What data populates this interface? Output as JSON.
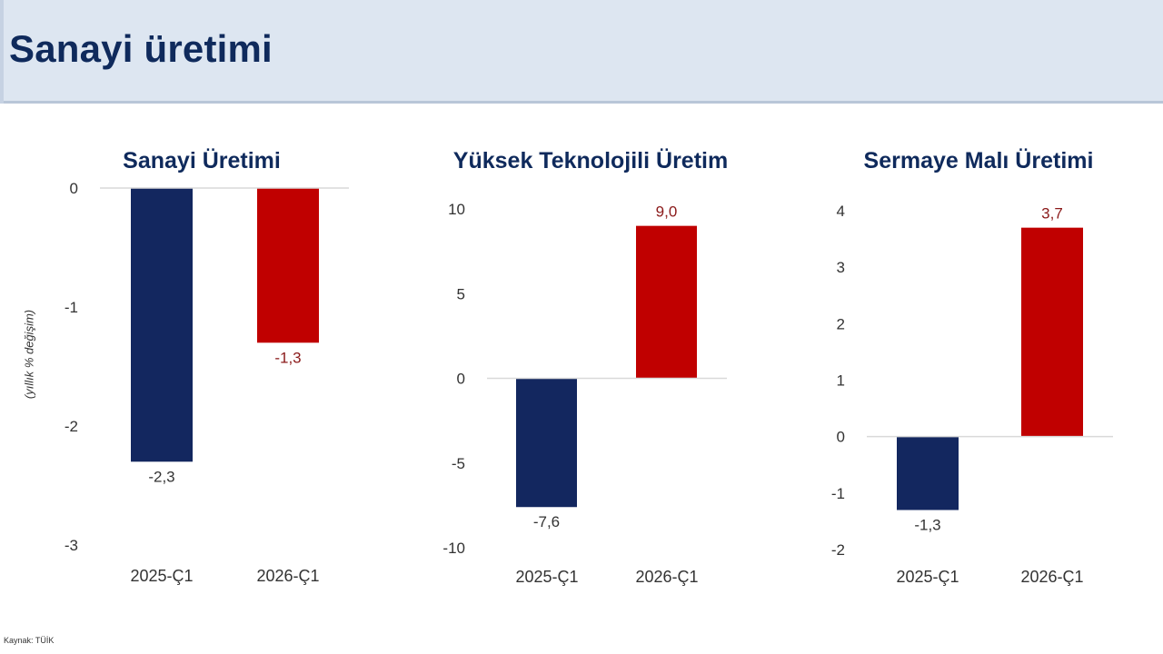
{
  "page": {
    "title": "Sanayi üretimi",
    "y_unit_label": "(yıllık % değişim)",
    "source": "Kaynak: TÜİK"
  },
  "colors": {
    "header_bg": "#dde6f1",
    "title": "#0f2a5c",
    "navy": "#13275f",
    "red": "#c00000",
    "red_label": "#8b1a1a"
  },
  "chart_data": [
    {
      "type": "bar",
      "title": "Sanayi Üretimi",
      "categories": [
        "2025-Ç1",
        "2026-Ç1"
      ],
      "values": [
        -2.3,
        -1.3
      ],
      "value_labels": [
        "-2,3",
        "-1,3"
      ],
      "bar_colors": [
        "#13275f",
        "#c00000"
      ],
      "ylim": [
        -3,
        0
      ],
      "yticks": [
        0,
        -1,
        -2,
        -3
      ],
      "ytick_labels": [
        "0",
        "-1",
        "-2",
        "-3"
      ],
      "grid": false,
      "legend": "none"
    },
    {
      "type": "bar",
      "title": "Yüksek Teknolojili Üretim",
      "categories": [
        "2025-Ç1",
        "2026-Ç1"
      ],
      "values": [
        -7.6,
        9.0
      ],
      "value_labels": [
        "-7,6",
        "9,0"
      ],
      "bar_colors": [
        "#13275f",
        "#c00000"
      ],
      "ylim": [
        -10,
        10
      ],
      "yticks": [
        10,
        5,
        0,
        -5,
        -10
      ],
      "ytick_labels": [
        "10",
        "5",
        "0",
        "-5",
        "-10"
      ],
      "grid": false,
      "legend": "none"
    },
    {
      "type": "bar",
      "title": "Sermaye Malı Üretimi",
      "categories": [
        "2025-Ç1",
        "2026-Ç1"
      ],
      "values": [
        -1.3,
        3.7
      ],
      "value_labels": [
        "-1,3",
        "3,7"
      ],
      "bar_colors": [
        "#13275f",
        "#c00000"
      ],
      "ylim": [
        -2,
        4
      ],
      "yticks": [
        4,
        3,
        2,
        1,
        0,
        -1,
        -2
      ],
      "ytick_labels": [
        "4",
        "3",
        "2",
        "1",
        "0",
        "-1",
        "-2"
      ],
      "grid": false,
      "legend": "none"
    }
  ]
}
